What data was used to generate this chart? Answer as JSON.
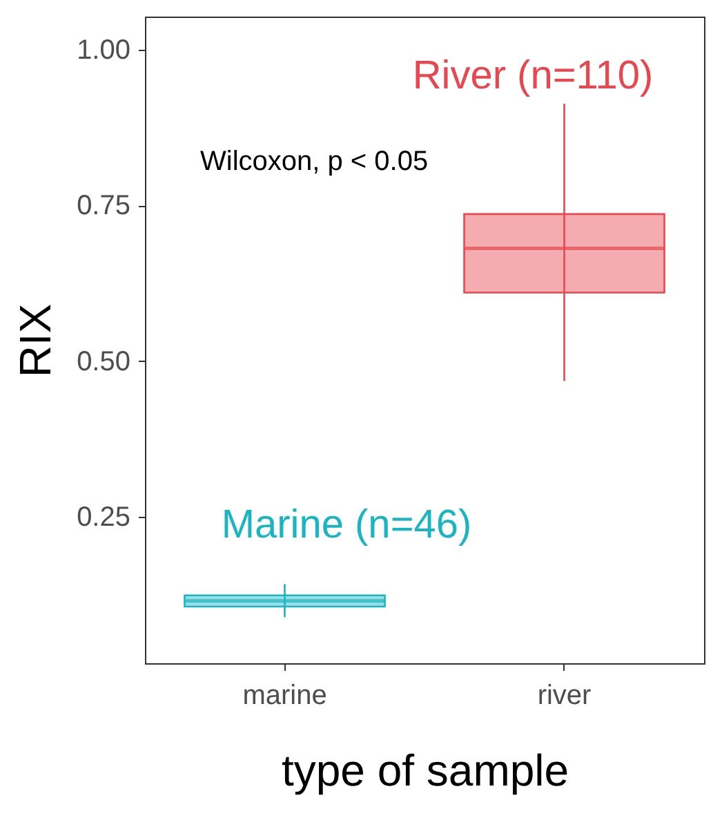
{
  "chart_data": {
    "type": "box",
    "xlabel": "type of sample",
    "ylabel": "RIX",
    "categories": [
      "marine",
      "river"
    ],
    "colors": [
      "#1ab5c2",
      "#e8474f"
    ],
    "boxes": [
      {
        "low": 0.089,
        "q1": 0.106,
        "median": 0.115,
        "q3": 0.124,
        "high": 0.142
      },
      {
        "low": 0.468,
        "q1": 0.61,
        "median": 0.681,
        "q3": 0.736,
        "high": 0.913
      }
    ],
    "ylim": [
      0.015,
      1.053
    ],
    "yticks": [
      {
        "value": 0.25,
        "label": "0.25"
      },
      {
        "value": 0.5,
        "label": "0.50"
      },
      {
        "value": 0.75,
        "label": "0.75"
      },
      {
        "value": 1.0,
        "label": "1.00"
      }
    ],
    "grid": false,
    "annotations": [
      "River (n=110)",
      "Wilcoxon, p < 0.05",
      "Marine (n=46)"
    ]
  }
}
